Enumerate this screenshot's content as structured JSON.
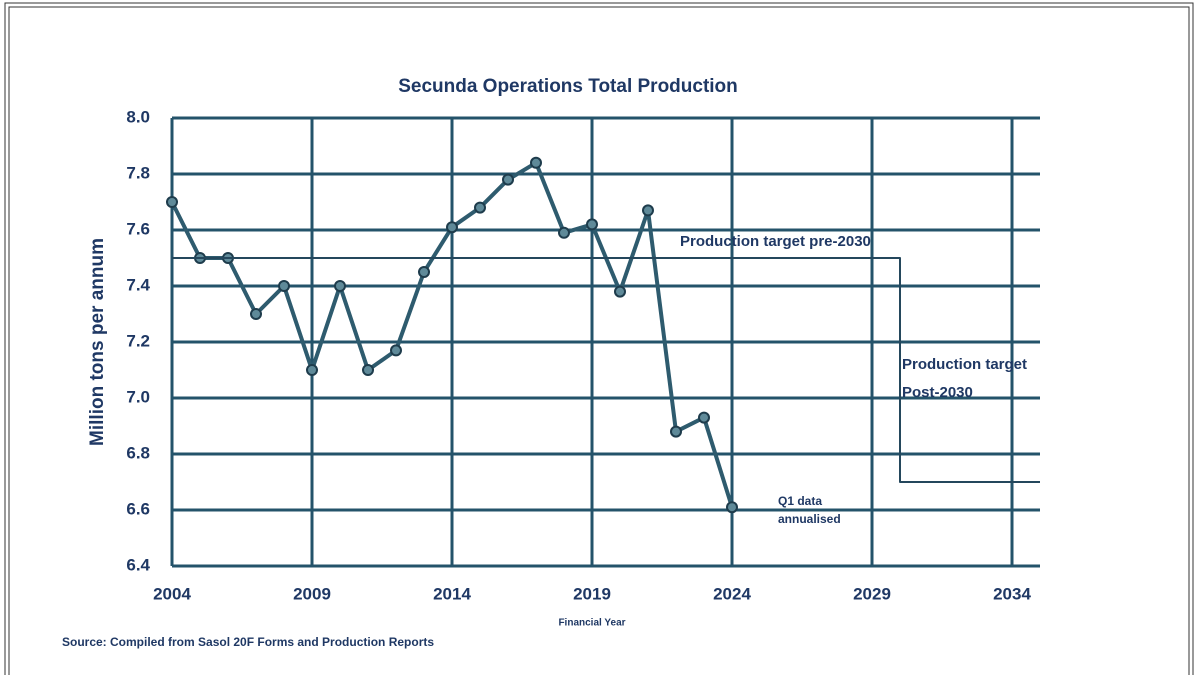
{
  "chart_data": {
    "type": "line",
    "title": "Secunda Operations Total Production",
    "xlabel": "Financial Year",
    "ylabel": "Million tons per annum",
    "source": "Source: Compiled from Sasol 20F Forms and Production Reports",
    "annotations": [
      "Production target pre-2030",
      "Production target",
      "Post-2030",
      "Q1 data",
      "annualised"
    ],
    "xlim": [
      2004,
      2035
    ],
    "xticks": [
      2004,
      2009,
      2014,
      2019,
      2024,
      2029,
      2034
    ],
    "ylim": [
      6.4,
      8.0
    ],
    "yticks": [
      {
        "value": 6.4,
        "label": "6.4"
      },
      {
        "value": 6.6,
        "label": "6.6"
      },
      {
        "value": 6.8,
        "label": "6.8"
      },
      {
        "value": 7.0,
        "label": "7.0"
      },
      {
        "value": 7.2,
        "label": "7.2"
      },
      {
        "value": 7.4,
        "label": "7.4"
      },
      {
        "value": 7.6,
        "label": "7.6"
      },
      {
        "value": 7.8,
        "label": "7.8"
      },
      {
        "value": 8.0,
        "label": "8.0"
      }
    ],
    "grid": true,
    "grid_color": "#24536a",
    "series": [
      {
        "x": [
          2004,
          2005,
          2006,
          2007,
          2008,
          2009,
          2010,
          2011,
          2012,
          2013,
          2014,
          2015,
          2016,
          2017,
          2018,
          2019,
          2020,
          2021,
          2022,
          2023,
          2024
        ],
        "values": [
          7.7,
          7.5,
          7.5,
          7.3,
          7.4,
          7.1,
          7.4,
          7.1,
          7.17,
          7.45,
          7.61,
          7.68,
          7.78,
          7.84,
          7.59,
          7.62,
          7.38,
          7.67,
          6.88,
          6.93,
          6.61
        ],
        "color": "#2e5b6e",
        "markers": true
      },
      {
        "x": [
          2004,
          2030,
          2030,
          2035
        ],
        "values": [
          7.5,
          7.5,
          6.7,
          6.7
        ],
        "color": "#24475c",
        "markers": false
      }
    ]
  }
}
